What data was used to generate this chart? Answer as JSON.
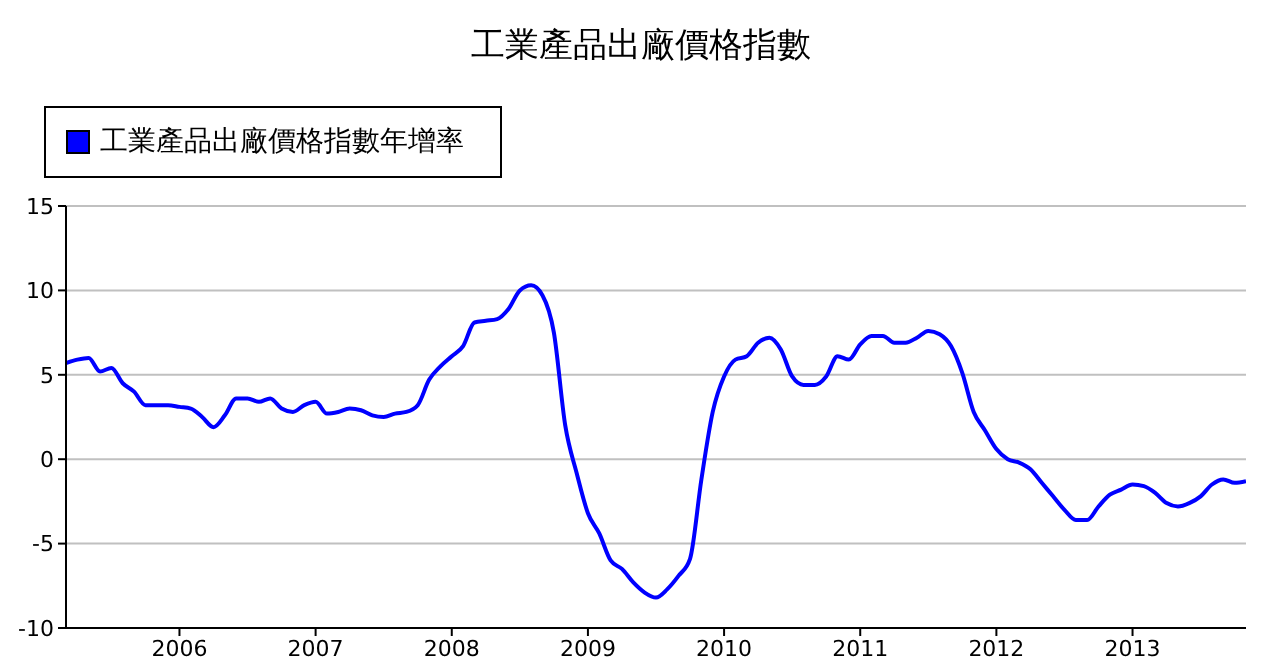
{
  "chart_data": {
    "type": "line",
    "title": "工業產品出廠價格指數",
    "x": [
      "2005-03",
      "2005-04",
      "2005-05",
      "2005-06",
      "2005-07",
      "2005-08",
      "2005-09",
      "2005-10",
      "2005-11",
      "2005-12",
      "2006-01",
      "2006-02",
      "2006-03",
      "2006-04",
      "2006-05",
      "2006-06",
      "2006-07",
      "2006-08",
      "2006-09",
      "2006-10",
      "2006-11",
      "2006-12",
      "2007-01",
      "2007-02",
      "2007-03",
      "2007-04",
      "2007-05",
      "2007-06",
      "2007-07",
      "2007-08",
      "2007-09",
      "2007-10",
      "2007-11",
      "2007-12",
      "2008-01",
      "2008-02",
      "2008-03",
      "2008-04",
      "2008-05",
      "2008-06",
      "2008-07",
      "2008-08",
      "2008-09",
      "2008-10",
      "2008-11",
      "2008-12",
      "2009-01",
      "2009-02",
      "2009-03",
      "2009-04",
      "2009-05",
      "2009-06",
      "2009-07",
      "2009-08",
      "2009-09",
      "2009-10",
      "2009-11",
      "2009-12",
      "2010-01",
      "2010-02",
      "2010-03",
      "2010-04",
      "2010-05",
      "2010-06",
      "2010-07",
      "2010-08",
      "2010-09",
      "2010-10",
      "2010-11",
      "2010-12",
      "2011-01",
      "2011-02",
      "2011-03",
      "2011-04",
      "2011-05",
      "2011-06",
      "2011-07",
      "2011-08",
      "2011-09",
      "2011-10",
      "2011-11",
      "2011-12",
      "2012-01",
      "2012-02",
      "2012-03",
      "2012-04",
      "2012-05",
      "2012-06",
      "2012-07",
      "2012-08",
      "2012-09",
      "2012-10",
      "2012-11",
      "2012-12",
      "2013-01",
      "2013-02",
      "2013-03",
      "2013-04",
      "2013-05",
      "2013-06",
      "2013-07",
      "2013-08",
      "2013-09",
      "2013-10",
      "2013-11"
    ],
    "series": [
      {
        "name": "工業產品出廠價格指數年增率",
        "color": "#0000ff",
        "values": [
          5.7,
          5.9,
          6.0,
          5.2,
          5.4,
          4.5,
          4.0,
          3.2,
          3.2,
          3.2,
          3.1,
          3.0,
          2.5,
          1.9,
          2.6,
          3.6,
          3.6,
          3.4,
          3.6,
          3.0,
          2.8,
          3.2,
          3.4,
          2.7,
          2.8,
          3.0,
          2.9,
          2.6,
          2.5,
          2.7,
          2.8,
          3.2,
          4.7,
          5.5,
          6.1,
          6.7,
          8.1,
          8.2,
          8.3,
          8.9,
          10.0,
          10.3,
          9.7,
          7.5,
          2.0,
          -0.8,
          -3.2,
          -4.4,
          -6.0,
          -6.5,
          -7.3,
          -7.9,
          -8.2,
          -7.7,
          -6.9,
          -5.9,
          -1.2,
          2.8,
          4.9,
          5.9,
          6.1,
          6.9,
          7.2,
          6.5,
          4.9,
          4.4,
          4.4,
          4.9,
          6.1,
          5.9,
          6.8,
          7.3,
          7.3,
          6.9,
          6.9,
          7.2,
          7.6,
          7.4,
          6.7,
          5.1,
          2.8,
          1.7,
          0.6,
          0.0,
          -0.2,
          -0.6,
          -1.4,
          -2.2,
          -3.0,
          -3.6,
          -3.6,
          -2.8,
          -2.1,
          -1.8,
          -1.5,
          -1.6,
          -2.0,
          -2.6,
          -2.8,
          -2.6,
          -2.2,
          -1.5,
          -1.2,
          -1.4,
          -1.3
        ]
      }
    ],
    "xlim": [
      "2005-03",
      "2013-11"
    ],
    "xticks": [
      {
        "value": "2006",
        "label": "2006"
      },
      {
        "value": "2007",
        "label": "2007"
      },
      {
        "value": "2008",
        "label": "2008"
      },
      {
        "value": "2009",
        "label": "2009"
      },
      {
        "value": "2010",
        "label": "2010"
      },
      {
        "value": "2011",
        "label": "2011"
      },
      {
        "value": "2012",
        "label": "2012"
      },
      {
        "value": "2013",
        "label": "2013"
      }
    ],
    "ylim": [
      -10,
      15
    ],
    "yticks": [
      -10,
      -5,
      0,
      5,
      10,
      15
    ],
    "grid": "y",
    "legend": "top left",
    "marker": "none",
    "line_style": "solid"
  }
}
